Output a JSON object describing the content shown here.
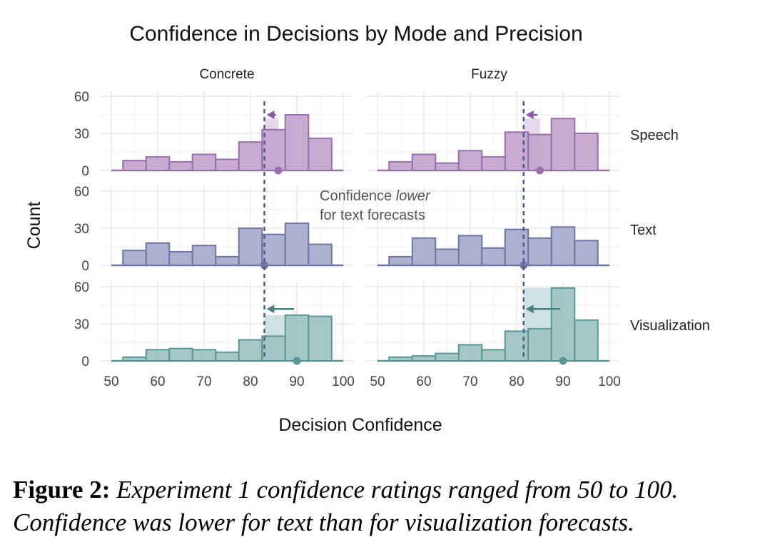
{
  "chart_data": {
    "type": "histogram",
    "title": "Confidence in Decisions by Mode and Precision",
    "xlabel": "Decision Confidence",
    "ylabel": "Count",
    "xlim": [
      50,
      100
    ],
    "ylim": [
      0,
      60
    ],
    "x_ticks": [
      "50",
      "60",
      "70",
      "80",
      "90",
      "100"
    ],
    "y_ticks": [
      "0",
      "30",
      "60"
    ],
    "grid": true,
    "columns": [
      "Concrete",
      "Fuzzy"
    ],
    "rows": [
      "Speech",
      "Text",
      "Visualization"
    ],
    "bin_edges": [
      52.5,
      57.5,
      62.5,
      67.5,
      72.5,
      77.5,
      82.5,
      87.5,
      92.5,
      97.5
    ],
    "panels": [
      {
        "row": "Speech",
        "column": "Concrete",
        "counts": [
          8,
          11,
          7,
          13,
          9,
          23,
          33,
          45,
          26
        ],
        "mean": 86,
        "text_mean": 83
      },
      {
        "row": "Speech",
        "column": "Fuzzy",
        "counts": [
          7,
          13,
          6,
          16,
          11,
          31,
          29,
          42,
          30
        ],
        "mean": 85,
        "text_mean": 81.5
      },
      {
        "row": "Text",
        "column": "Concrete",
        "counts": [
          12,
          18,
          11,
          16,
          7,
          30,
          25,
          34,
          17
        ],
        "mean": 83,
        "text_mean": 83
      },
      {
        "row": "Text",
        "column": "Fuzzy",
        "counts": [
          7,
          22,
          13,
          24,
          14,
          29,
          22,
          31,
          20
        ],
        "mean": 81.5,
        "text_mean": 81.5
      },
      {
        "row": "Visualization",
        "column": "Concrete",
        "counts": [
          3,
          9,
          10,
          9,
          7,
          17,
          20,
          37,
          36
        ],
        "mean": 90,
        "text_mean": 83
      },
      {
        "row": "Visualization",
        "column": "Fuzzy",
        "counts": [
          3,
          4,
          6,
          13,
          9,
          24,
          26,
          59,
          33
        ],
        "mean": 90,
        "text_mean": 81.5
      }
    ],
    "annotation": {
      "before": "Confidence ",
      "emphasis": "lower",
      "line2": "for text forecasts"
    },
    "colors": {
      "Speech": {
        "fill": "#c4a6cf",
        "stroke": "#9a6fae",
        "arrow": "#8a5a9e",
        "shade": "#e3d3ea"
      },
      "Text": {
        "fill": "#a9adcd",
        "stroke": "#6f76a6",
        "arrow": "#6f76a6",
        "shade": "#d3d6e6"
      },
      "Visualization": {
        "fill": "#9fc4c4",
        "stroke": "#5b9696",
        "arrow": "#4a7f82",
        "shade": "#cadfe0"
      },
      "mean_line": "#4f5d8f"
    }
  },
  "caption": {
    "label": "Figure 2:",
    "text": "Experiment 1 confidence ratings ranged from 50 to 100. Confidence was lower for text than for visualization forecasts."
  }
}
